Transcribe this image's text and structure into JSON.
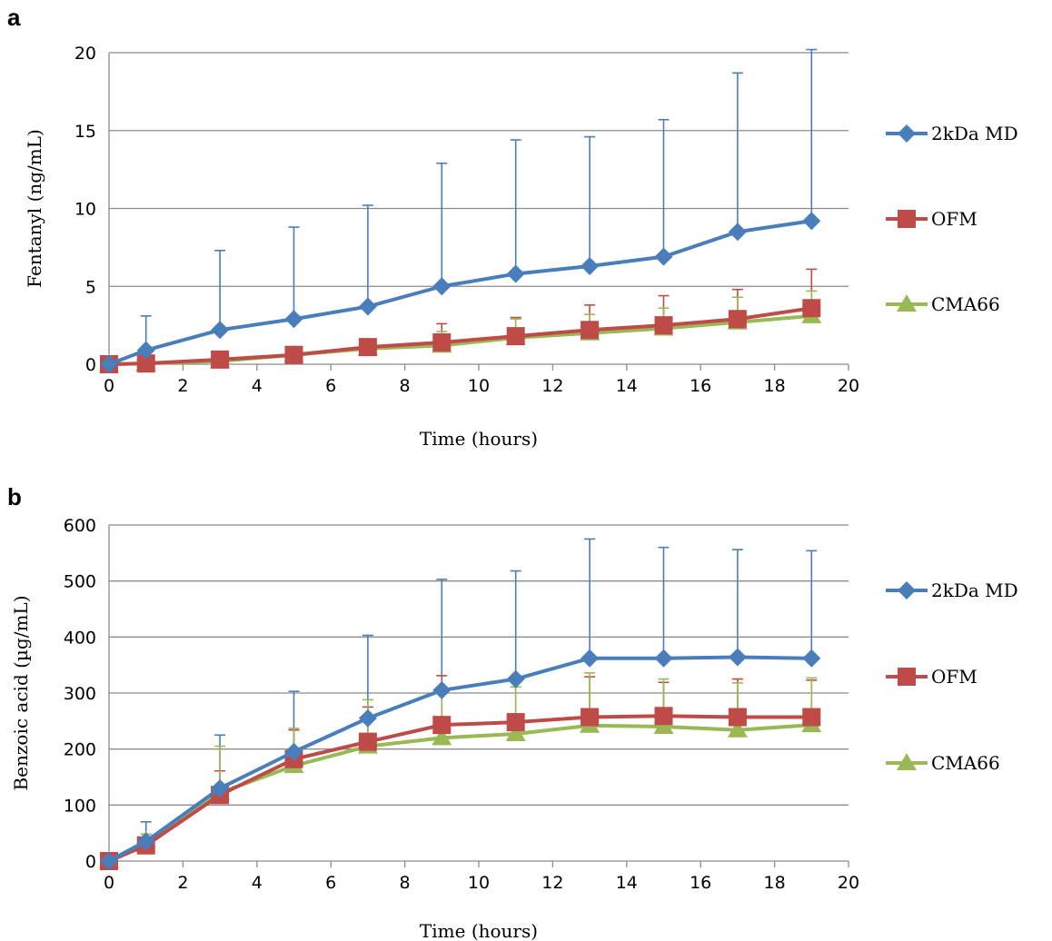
{
  "colors": {
    "2kDa MD": "#4a7ebb",
    "OFM": "#be4b48",
    "CMA66": "#98b954"
  },
  "chart_data": [
    {
      "panel": "a",
      "type": "line",
      "xlabel": "Time (hours)",
      "ylabel": "Fentanyl  (ng/mL)",
      "xlim": [
        0,
        20
      ],
      "ylim": [
        0,
        20
      ],
      "xticks": [
        0,
        2,
        4,
        6,
        8,
        10,
        12,
        14,
        16,
        18,
        20
      ],
      "yticks": [
        0,
        5,
        10,
        15,
        20
      ],
      "grid": "horizontal",
      "legend_position": "right",
      "x": [
        0,
        1,
        3,
        5,
        7,
        9,
        11,
        13,
        15,
        17,
        19
      ],
      "series": [
        {
          "name": "2kDa MD",
          "marker": "diamond",
          "values": [
            0,
            0.9,
            2.2,
            2.9,
            3.7,
            5.0,
            5.8,
            6.3,
            6.9,
            8.5,
            9.2
          ],
          "err": [
            0,
            2.2,
            5.1,
            5.9,
            6.5,
            7.9,
            8.6,
            8.3,
            8.8,
            10.2,
            11.0
          ]
        },
        {
          "name": "OFM",
          "marker": "square",
          "values": [
            0,
            0.05,
            0.3,
            0.6,
            1.1,
            1.4,
            1.8,
            2.2,
            2.5,
            2.9,
            3.6
          ],
          "err": [
            0,
            0.05,
            0.15,
            0.25,
            0.4,
            1.2,
            1.2,
            1.6,
            1.9,
            1.9,
            2.5
          ]
        },
        {
          "name": "CMA66",
          "marker": "triangle",
          "values": [
            0,
            0.05,
            0.2,
            0.6,
            1.0,
            1.2,
            1.7,
            2.0,
            2.3,
            2.7,
            3.1
          ],
          "err": [
            0,
            0.05,
            0.1,
            0.2,
            0.55,
            0.9,
            1.2,
            1.2,
            1.3,
            1.6,
            1.6
          ]
        }
      ]
    },
    {
      "panel": "b",
      "type": "line",
      "xlabel": "Time (hours)",
      "ylabel": "Benzoic acid (µg/mL)",
      "xlim": [
        0,
        20
      ],
      "ylim": [
        0,
        600
      ],
      "xticks": [
        0,
        2,
        4,
        6,
        8,
        10,
        12,
        14,
        16,
        18,
        20
      ],
      "yticks": [
        0,
        100,
        200,
        300,
        400,
        500,
        600
      ],
      "grid": "horizontal",
      "legend_position": "right",
      "x": [
        0,
        1,
        3,
        5,
        7,
        9,
        11,
        13,
        15,
        17,
        19
      ],
      "series": [
        {
          "name": "2kDa MD",
          "marker": "diamond",
          "values": [
            0,
            35,
            130,
            195,
            255,
            305,
            325,
            362,
            362,
            364,
            362
          ],
          "err": [
            0,
            35,
            95,
            108,
            148,
            198,
            193,
            213,
            198,
            192,
            192
          ]
        },
        {
          "name": "OFM",
          "marker": "square",
          "values": [
            0,
            28,
            118,
            182,
            213,
            243,
            248,
            257,
            259,
            257,
            257
          ],
          "err": [
            0,
            20,
            43,
            52,
            62,
            88,
            72,
            72,
            60,
            68,
            66
          ]
        },
        {
          "name": "CMA66",
          "marker": "triangle",
          "values": [
            0,
            36,
            122,
            170,
            205,
            220,
            227,
            242,
            240,
            234,
            243
          ],
          "err": [
            0,
            12,
            83,
            67,
            83,
            85,
            84,
            94,
            85,
            84,
            84
          ]
        }
      ]
    }
  ]
}
